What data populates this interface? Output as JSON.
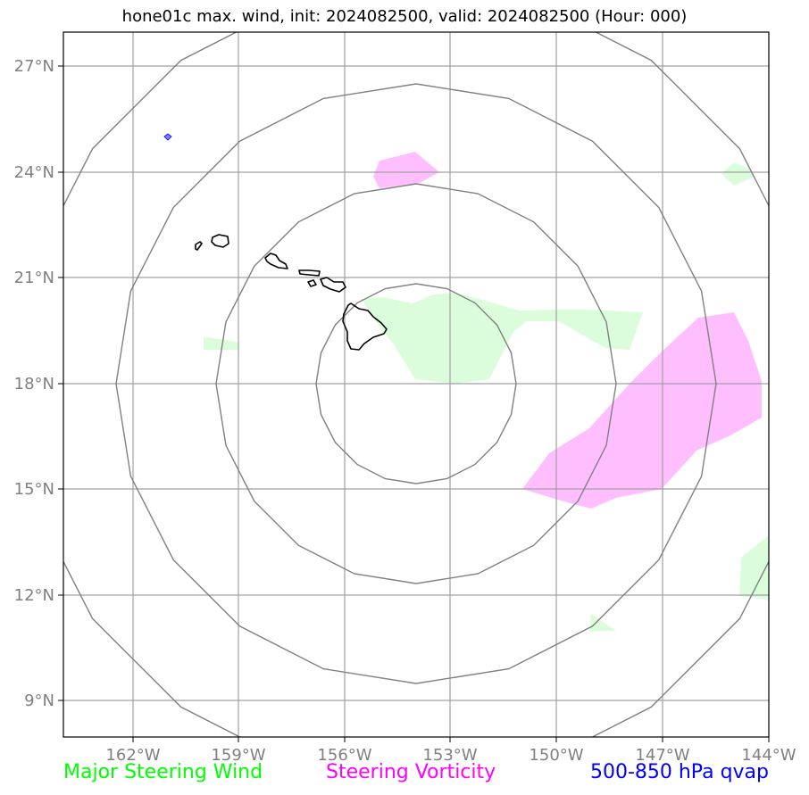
{
  "title": "hone01c max. wind, init: 2024082500, valid: 2024082500 (Hour: 000)",
  "axes": {
    "lon_ticks": [
      "162°W",
      "159°W",
      "156°W",
      "153°W",
      "150°W",
      "147°W",
      "144°W"
    ],
    "lat_ticks": [
      "27°N",
      "24°N",
      "21°N",
      "18°N",
      "15°N",
      "12°N",
      "9°N"
    ]
  },
  "legend": [
    {
      "label": "Major Steering Wind",
      "color": "#00ff00"
    },
    {
      "label": "Steering Vorticity",
      "color": "#ff00ff"
    },
    {
      "label": "500-850 hPa qvap",
      "color": "#0000ff"
    }
  ],
  "colors": {
    "grid": "#a0a0a0",
    "range_rings": "#808080",
    "coastline": "#000000",
    "wind_fill": "#dcfddc",
    "vorticity_fill": "#ffbfff",
    "qvap_fill": "#8080ff"
  }
}
